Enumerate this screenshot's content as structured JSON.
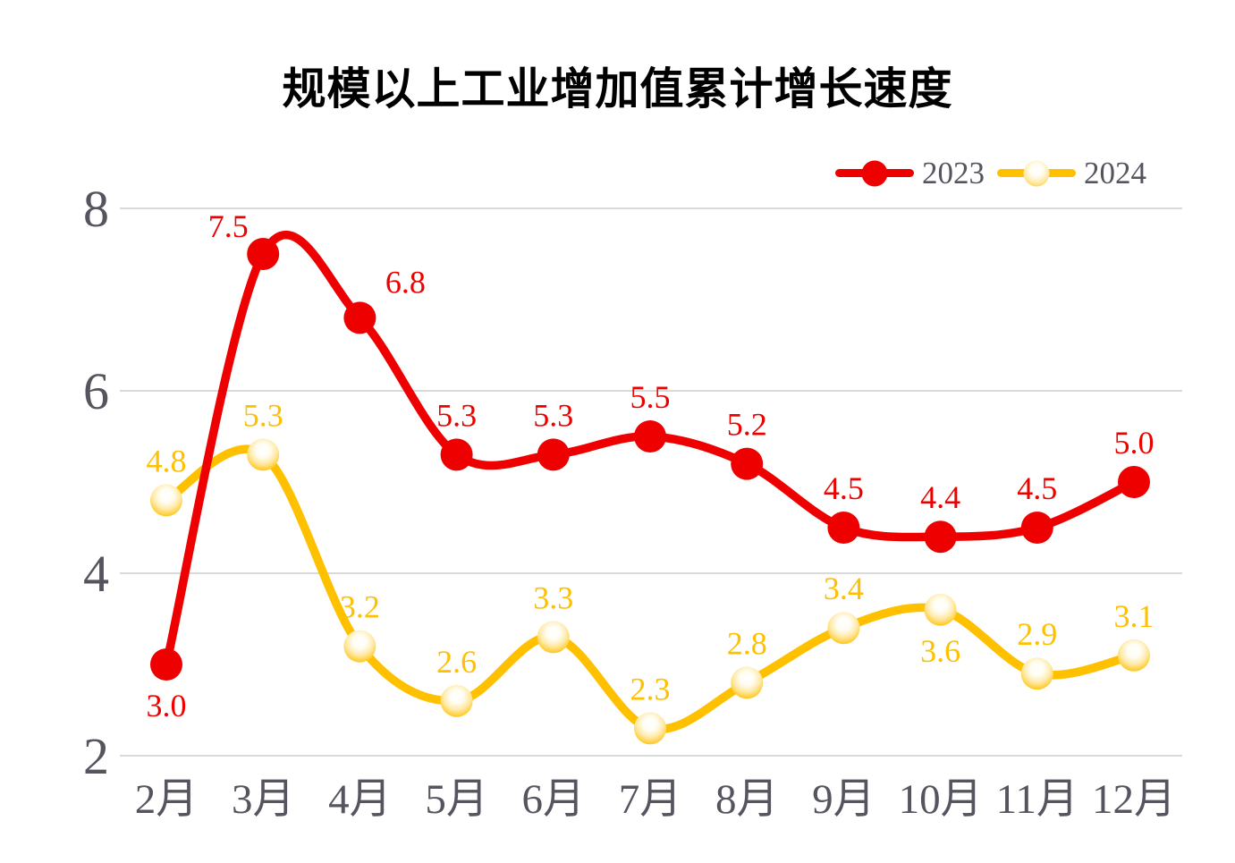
{
  "title": "规模以上工业增加值累计增长速度",
  "colors": {
    "red": "#ee0000",
    "gold": "#ffc000",
    "axis_text": "#54555e",
    "gridline": "#d9d9d9",
    "title_text": "#000000"
  },
  "chart_data": {
    "type": "line",
    "smoothed": true,
    "title": "规模以上工业增加值累计增长速度",
    "categories": [
      "2月",
      "3月",
      "4月",
      "5月",
      "6月",
      "7月",
      "8月",
      "9月",
      "10月",
      "11月",
      "12月"
    ],
    "series": [
      {
        "name": "2023",
        "color": "#ee0000",
        "marker": "solid",
        "values": [
          3.0,
          7.5,
          6.8,
          5.3,
          5.3,
          5.5,
          5.2,
          4.5,
          4.4,
          4.5,
          5.0
        ],
        "label_positions": [
          "below",
          "above-left",
          "above-right",
          "above",
          "above",
          "above",
          "above",
          "above",
          "above",
          "above",
          "above"
        ]
      },
      {
        "name": "2024",
        "color": "#ffc000",
        "marker": "gloss-gradient",
        "values": [
          4.8,
          5.3,
          3.2,
          2.6,
          3.3,
          2.3,
          2.8,
          3.4,
          3.6,
          2.9,
          3.1
        ],
        "label_positions": [
          "above",
          "above",
          "above",
          "above",
          "above",
          "above",
          "above",
          "above",
          "below",
          "above",
          "above"
        ]
      }
    ],
    "ylim": [
      2,
      8
    ],
    "yticks": [
      2,
      4,
      6,
      8
    ],
    "xlabel": "",
    "ylabel": "",
    "grid": "horizontal",
    "legend_position": "top-right",
    "data_labels": true,
    "label_format": "0.0"
  }
}
